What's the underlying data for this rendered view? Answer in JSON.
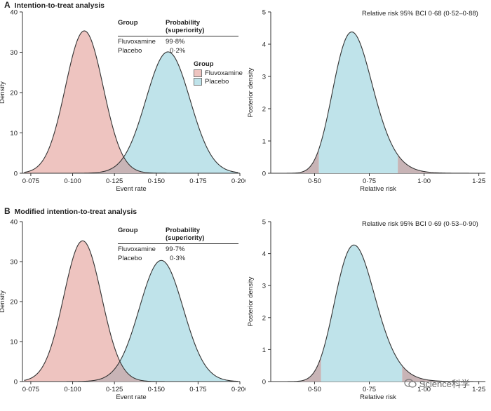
{
  "panels": {
    "A": {
      "letter": "A",
      "title": "Intention-to-treat analysis",
      "table": {
        "col1": "Group",
        "col2": "Probability (superiority)",
        "rows": [
          {
            "group": "Fluvoxamine",
            "prob": "99·8%"
          },
          {
            "group": "Placebo",
            "prob": "0·2%"
          }
        ]
      },
      "bci": "Relative risk 95% BCI 0·68 (0·52–0·88)"
    },
    "B": {
      "letter": "B",
      "title": "Modified intention-to-treat analysis",
      "table": {
        "col1": "Group",
        "col2": "Probability (superiority)",
        "rows": [
          {
            "group": "Fluvoxamine",
            "prob": "99·7%"
          },
          {
            "group": "Placebo",
            "prob": "0·3%"
          }
        ]
      },
      "bci": "Relative risk 95% BCI 0·69 (0·53–0·90)"
    }
  },
  "legend": {
    "title": "Group",
    "items": [
      {
        "label": "Fluvoxamine",
        "color": "#eec4c0"
      },
      {
        "label": "Placebo",
        "color": "#bfe3ea"
      }
    ]
  },
  "colors": {
    "fluvoxamine": "#eec4c0",
    "placebo": "#bfe3ea",
    "overlap": "#c8b4b6",
    "tail": "#c8b4b6",
    "line": "#333333"
  },
  "watermark": "Science科学",
  "chart_data": [
    {
      "id": "A-left",
      "type": "area",
      "xlabel": "Event rate",
      "ylabel": "Density",
      "xlim": [
        0.07,
        0.2
      ],
      "ylim": [
        0,
        40
      ],
      "xticks": [
        0.075,
        0.1,
        0.125,
        0.15,
        0.175,
        0.2
      ],
      "xticklabels": [
        "0·075",
        "0·100",
        "0·125",
        "0·150",
        "0·175",
        "0·200"
      ],
      "yticks": [
        0,
        10,
        20,
        30,
        40
      ],
      "yticklabels": [
        "0",
        "10",
        "20",
        "30",
        "40"
      ],
      "series": [
        {
          "name": "Fluvoxamine",
          "peak_x": 0.107,
          "peak_density": 35.3,
          "sd": 0.0113
        },
        {
          "name": "Placebo",
          "peak_x": 0.157,
          "peak_density": 30.1,
          "sd": 0.0132
        }
      ]
    },
    {
      "id": "A-right",
      "type": "area",
      "xlabel": "Relative risk",
      "ylabel": "Posterior density",
      "xlim": [
        0.3,
        1.28
      ],
      "ylim": [
        0,
        5
      ],
      "xticks": [
        0.5,
        0.75,
        1.0,
        1.25
      ],
      "xticklabels": [
        "0·50",
        "0·75",
        "1·00",
        "1·25"
      ],
      "yticks": [
        0,
        1,
        2,
        3,
        4,
        5
      ],
      "yticklabels": [
        "0",
        "1",
        "2",
        "3",
        "4",
        "5"
      ],
      "series": [
        {
          "name": "Posterior",
          "mode": 0.67,
          "peak_density": 4.38,
          "ci": [
            0.52,
            0.88
          ]
        }
      ]
    },
    {
      "id": "B-left",
      "type": "area",
      "xlabel": "Event rate",
      "ylabel": "Density",
      "xlim": [
        0.07,
        0.2
      ],
      "ylim": [
        0,
        40
      ],
      "xticks": [
        0.075,
        0.1,
        0.125,
        0.15,
        0.175,
        0.2
      ],
      "xticklabels": [
        "0·075",
        "0·100",
        "0·125",
        "0·150",
        "0·175",
        "0·200"
      ],
      "yticks": [
        0,
        10,
        20,
        30,
        40
      ],
      "yticklabels": [
        "0",
        "10",
        "20",
        "30",
        "40"
      ],
      "series": [
        {
          "name": "Fluvoxamine",
          "peak_x": 0.106,
          "peak_density": 35.2,
          "sd": 0.0113
        },
        {
          "name": "Placebo",
          "peak_x": 0.153,
          "peak_density": 30.3,
          "sd": 0.0131
        }
      ]
    },
    {
      "id": "B-right",
      "type": "area",
      "xlabel": "Relative risk",
      "ylabel": "Posterior density",
      "xlim": [
        0.3,
        1.28
      ],
      "ylim": [
        0,
        5
      ],
      "xticks": [
        0.5,
        0.75,
        1.0,
        1.25
      ],
      "xticklabels": [
        "0·50",
        "0·75",
        "1·00",
        "1·25"
      ],
      "yticks": [
        0,
        1,
        2,
        3,
        4,
        5
      ],
      "yticklabels": [
        "0",
        "1",
        "2",
        "3",
        "4",
        "5"
      ],
      "series": [
        {
          "name": "Posterior",
          "mode": 0.68,
          "peak_density": 4.27,
          "ci": [
            0.53,
            0.9
          ]
        }
      ]
    }
  ]
}
